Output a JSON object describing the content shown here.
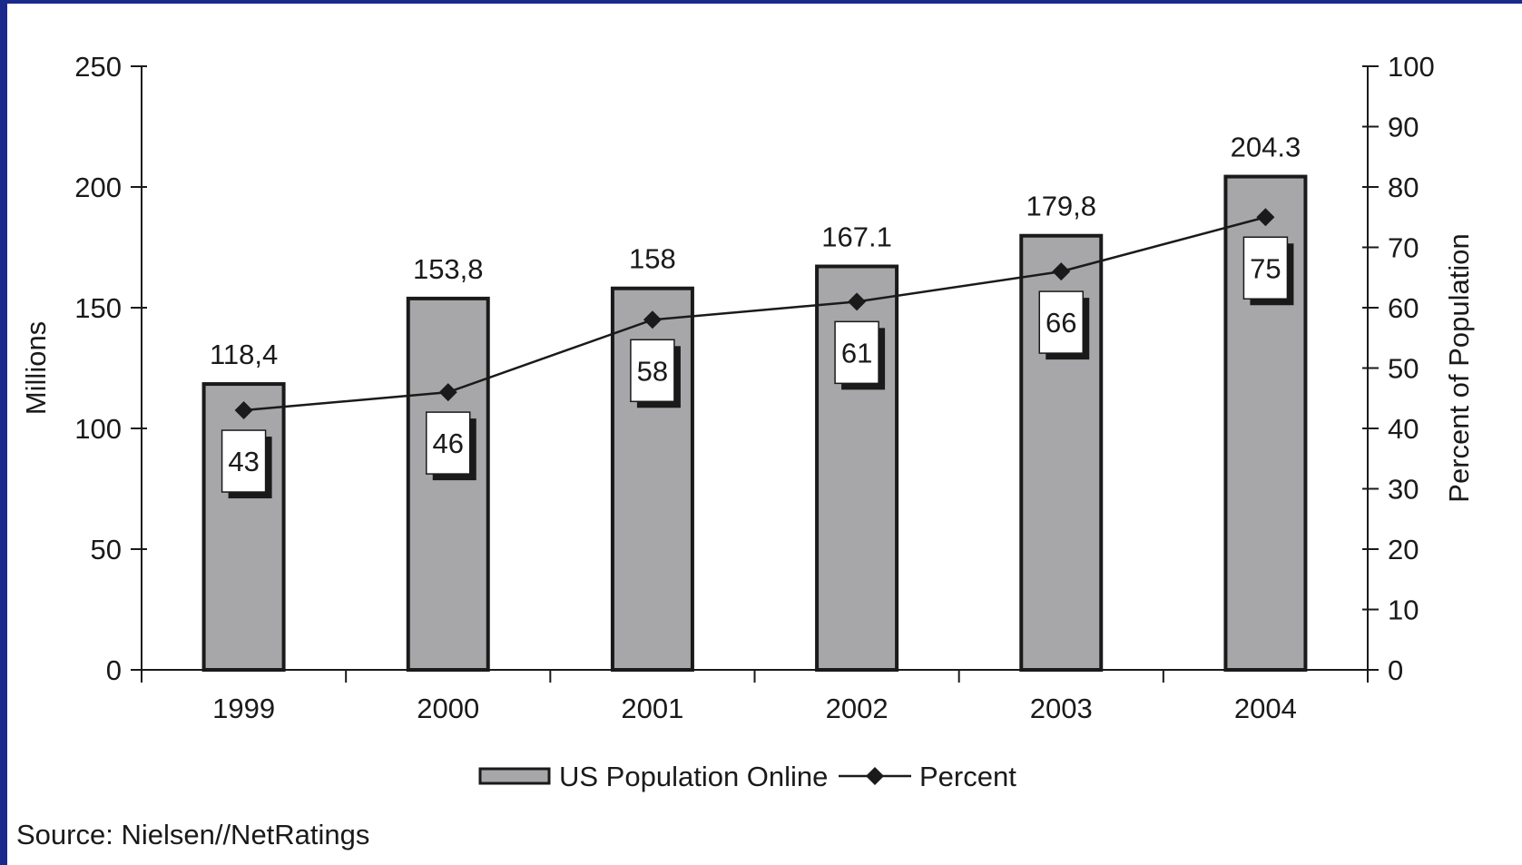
{
  "chart_data": {
    "type": "bar",
    "categories": [
      "1999",
      "2000",
      "2001",
      "2002",
      "2003",
      "2004"
    ],
    "series": [
      {
        "name": "US Population Online",
        "kind": "bar",
        "axis": "left",
        "values": [
          118.4,
          153.8,
          158,
          167.1,
          179.8,
          204.3
        ],
        "labels": [
          "118,4",
          "153,8",
          "158",
          "167.1",
          "179,8",
          "204.3"
        ],
        "color": "#a7a7aa"
      },
      {
        "name": "Percent",
        "kind": "line",
        "axis": "right",
        "values": [
          43,
          46,
          58,
          61,
          66,
          75
        ],
        "labels": [
          "43",
          "46",
          "58",
          "61",
          "66",
          "75"
        ],
        "color": "#1a1a1a",
        "marker": "diamond"
      }
    ],
    "ylabel": "Millions",
    "y2label": "Percent of Population",
    "ylim": [
      0,
      250
    ],
    "y2lim": [
      0,
      100
    ],
    "yticks": [
      "0",
      "50",
      "100",
      "150",
      "200",
      "250"
    ],
    "y2ticks": [
      "0",
      "10",
      "20",
      "30",
      "40",
      "50",
      "60",
      "70",
      "80",
      "90",
      "100"
    ],
    "grid": false,
    "legend_position": "bottom-center"
  },
  "source_note": "Source:  Nielsen//NetRatings",
  "colors": {
    "background_border": "#1a2a8c",
    "bar_fill": "#a7a7aa",
    "ink": "#1a1a1a"
  }
}
